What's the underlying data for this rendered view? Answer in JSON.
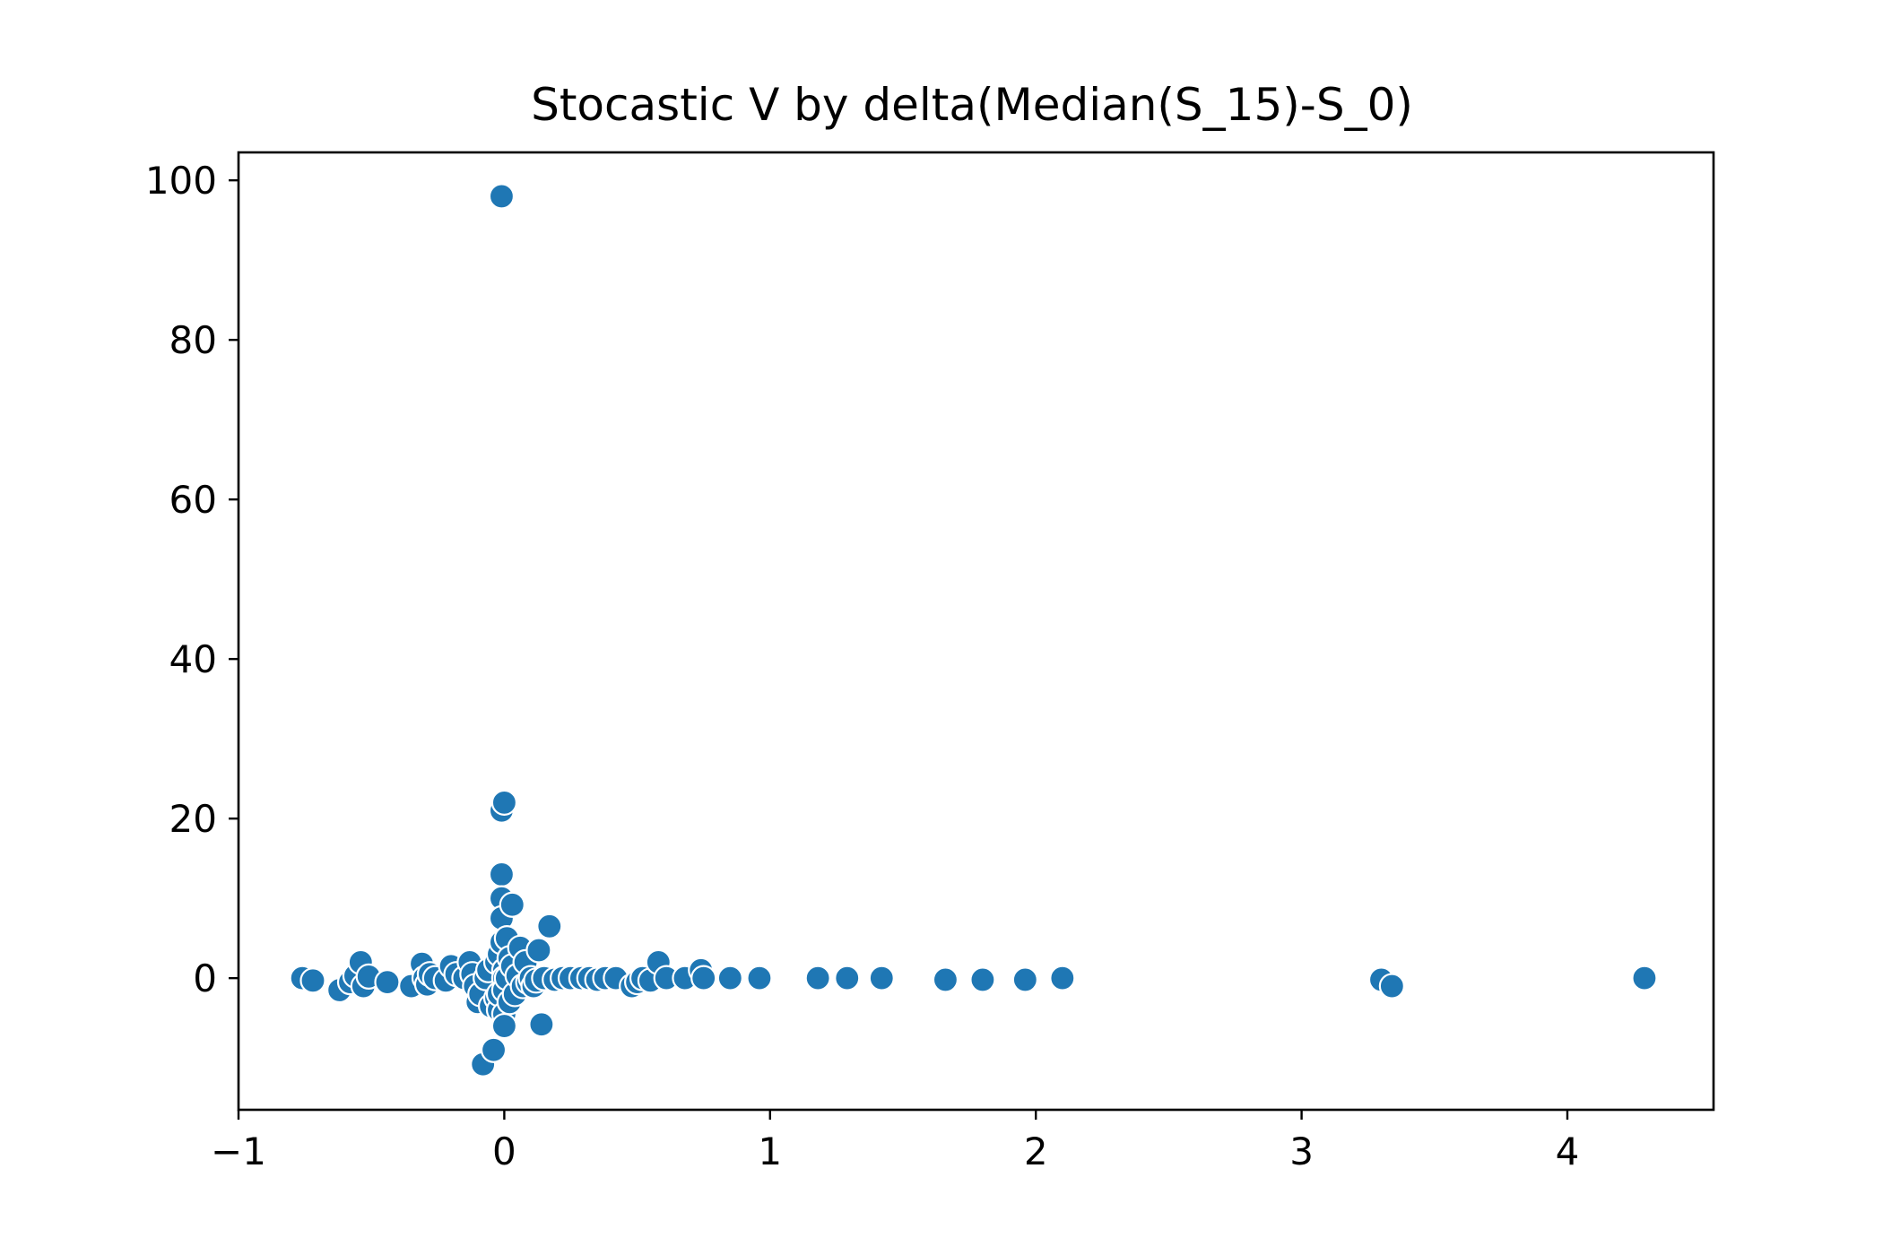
{
  "chart_data": {
    "type": "scatter",
    "title": "Stocastic V by delta(Median(S_15)-S_0)",
    "xlabel": "",
    "ylabel": "",
    "xlim": [
      -1.0,
      4.55
    ],
    "ylim": [
      -16.5,
      103.5
    ],
    "x_ticks": [
      -1,
      0,
      1,
      2,
      3,
      4
    ],
    "x_tick_labels": [
      "−1",
      "0",
      "1",
      "2",
      "3",
      "4"
    ],
    "y_ticks": [
      0,
      20,
      40,
      60,
      80,
      100
    ],
    "y_tick_labels": [
      "0",
      "20",
      "40",
      "60",
      "80",
      "100"
    ],
    "grid": false,
    "legend": "none",
    "marker_color": "#1f77b4",
    "marker_edge_color": "#ffffff",
    "series": [
      {
        "x": [
          -0.76,
          -0.72,
          -0.62,
          -0.58,
          -0.56,
          -0.54,
          -0.53,
          -0.51,
          -0.44,
          -0.35,
          -0.31,
          -0.3,
          -0.29,
          -0.28,
          -0.26,
          -0.22,
          -0.2,
          -0.18,
          -0.15,
          -0.13,
          -0.12,
          -0.11,
          -0.1,
          -0.09,
          -0.08,
          -0.07,
          -0.06,
          -0.05,
          -0.04,
          -0.03,
          -0.03,
          -0.02,
          -0.02,
          -0.02,
          -0.01,
          -0.01,
          -0.01,
          -0.01,
          -0.01,
          -0.01,
          0.0,
          0.0,
          0.0,
          0.0,
          0.0,
          0.0,
          0.01,
          0.01,
          0.02,
          0.02,
          0.03,
          0.03,
          0.04,
          0.05,
          0.06,
          0.07,
          0.08,
          0.09,
          0.1,
          0.11,
          0.12,
          0.13,
          0.14,
          0.15,
          0.17,
          0.19,
          0.22,
          0.25,
          0.29,
          0.32,
          0.35,
          0.38,
          0.42,
          0.48,
          0.5,
          0.52,
          0.55,
          0.58,
          0.61,
          0.68,
          0.74,
          0.75,
          0.85,
          0.96,
          1.18,
          1.29,
          1.42,
          1.66,
          1.8,
          1.96,
          2.1,
          3.3,
          3.34,
          4.29
        ],
        "y": [
          0.0,
          -0.3,
          -1.5,
          -0.5,
          0.3,
          2.0,
          -1.0,
          0.2,
          -0.5,
          -1.0,
          1.8,
          0.0,
          -0.8,
          0.5,
          0.0,
          -0.3,
          1.5,
          0.5,
          0.0,
          2.0,
          0.5,
          -1.0,
          -3.0,
          -2.0,
          -10.8,
          0.0,
          1.0,
          -3.5,
          -9.0,
          -2.5,
          2.0,
          -4.0,
          3.0,
          -2.0,
          98.0,
          21.0,
          13.0,
          10.0,
          7.5,
          4.5,
          22.0,
          1.0,
          0.0,
          -1.5,
          -4.5,
          -6.0,
          5.0,
          0.0,
          -3.0,
          2.5,
          9.2,
          1.5,
          -2.0,
          0.3,
          3.8,
          -1.0,
          2.0,
          -0.5,
          0.0,
          -1.0,
          -0.3,
          3.5,
          -5.8,
          0.0,
          6.5,
          -0.2,
          0.0,
          0.0,
          0.0,
          0.0,
          -0.2,
          0.0,
          0.0,
          -1.0,
          -0.5,
          0.0,
          -0.3,
          2.0,
          0.0,
          0.0,
          1.0,
          0.0,
          0.0,
          0.0,
          0.0,
          0.0,
          0.0,
          -0.2,
          -0.2,
          -0.2,
          0.0,
          -0.2,
          -1.0,
          0.0
        ]
      }
    ]
  }
}
